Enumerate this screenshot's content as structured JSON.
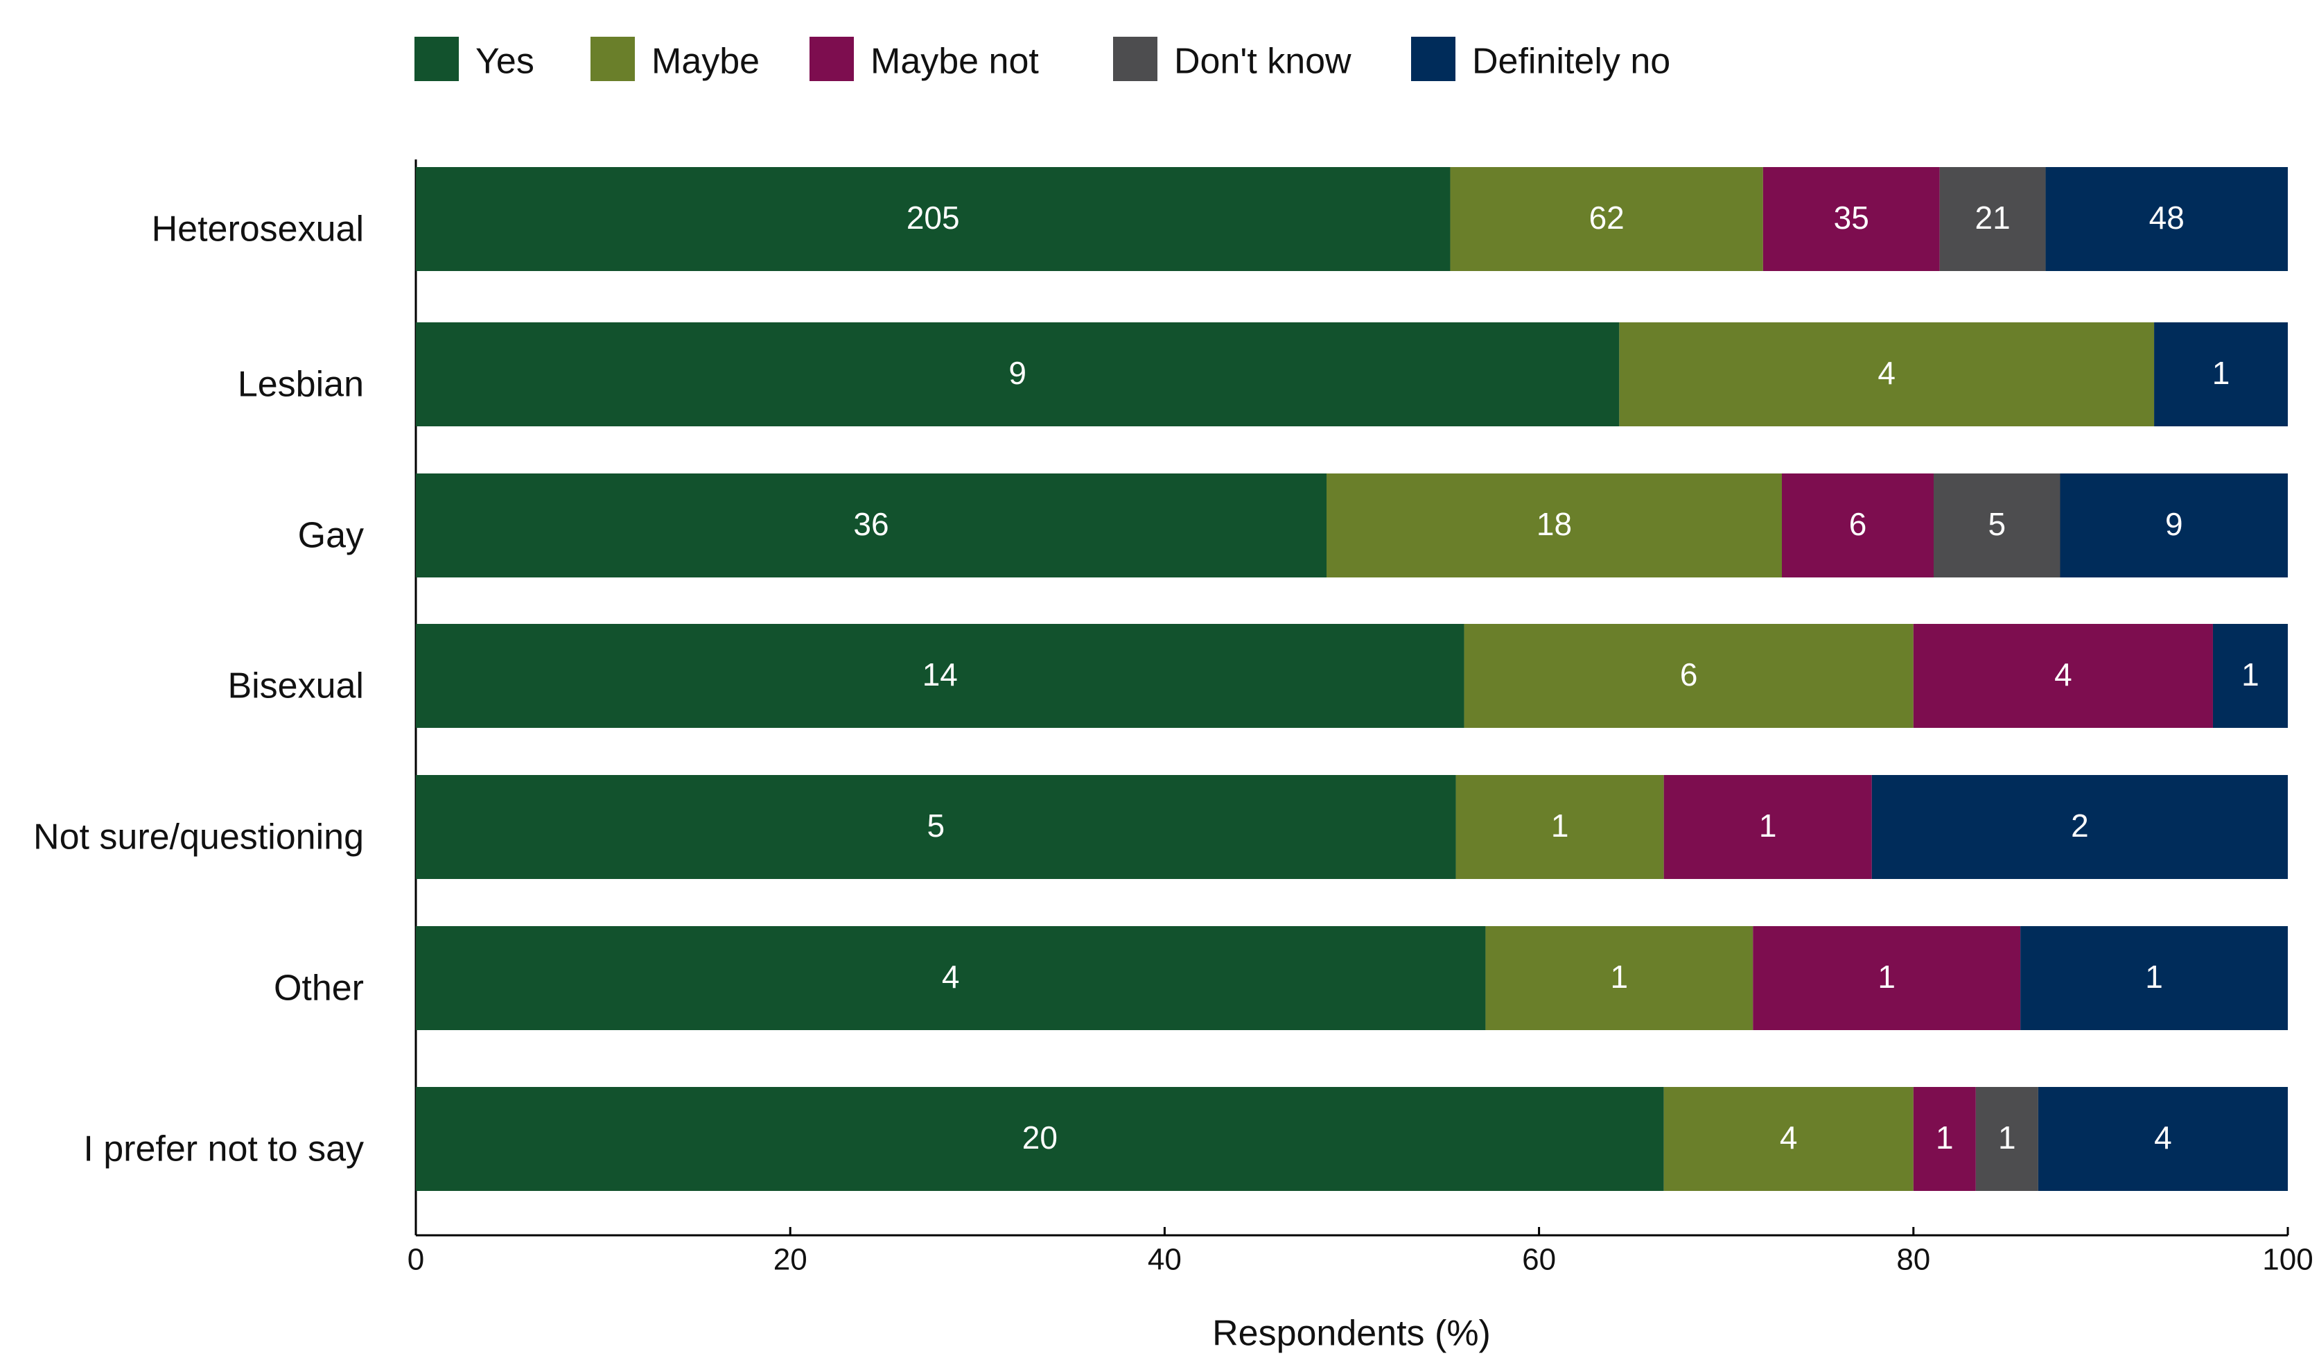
{
  "chart_data": {
    "type": "bar",
    "orientation": "horizontal",
    "stacked": "percent",
    "xlabel": "Respondents (%)",
    "categories": [
      "Heterosexual",
      "Lesbian",
      "Gay",
      "Bisexual",
      "Not sure/questioning",
      "Other",
      "I prefer not to say"
    ],
    "series": [
      {
        "name": "Yes",
        "color": "#12522d",
        "values": [
          205,
          9,
          36,
          14,
          5,
          4,
          20
        ]
      },
      {
        "name": "Maybe",
        "color": "#6a7f2a",
        "values": [
          62,
          4,
          18,
          6,
          1,
          1,
          4
        ]
      },
      {
        "name": "Maybe not",
        "color": "#7d0d4f",
        "values": [
          35,
          null,
          6,
          4,
          1,
          1,
          1
        ]
      },
      {
        "name": "Don't know",
        "color": "#4d4d4f",
        "values": [
          21,
          null,
          5,
          null,
          null,
          null,
          1
        ]
      },
      {
        "name": "Definitely no",
        "color": "#002c5a",
        "values": [
          48,
          1,
          9,
          1,
          2,
          1,
          4
        ]
      }
    ],
    "xlim": [
      0,
      100
    ],
    "xticks": [
      0,
      20,
      40,
      60,
      80,
      100
    ],
    "legend": "top"
  }
}
